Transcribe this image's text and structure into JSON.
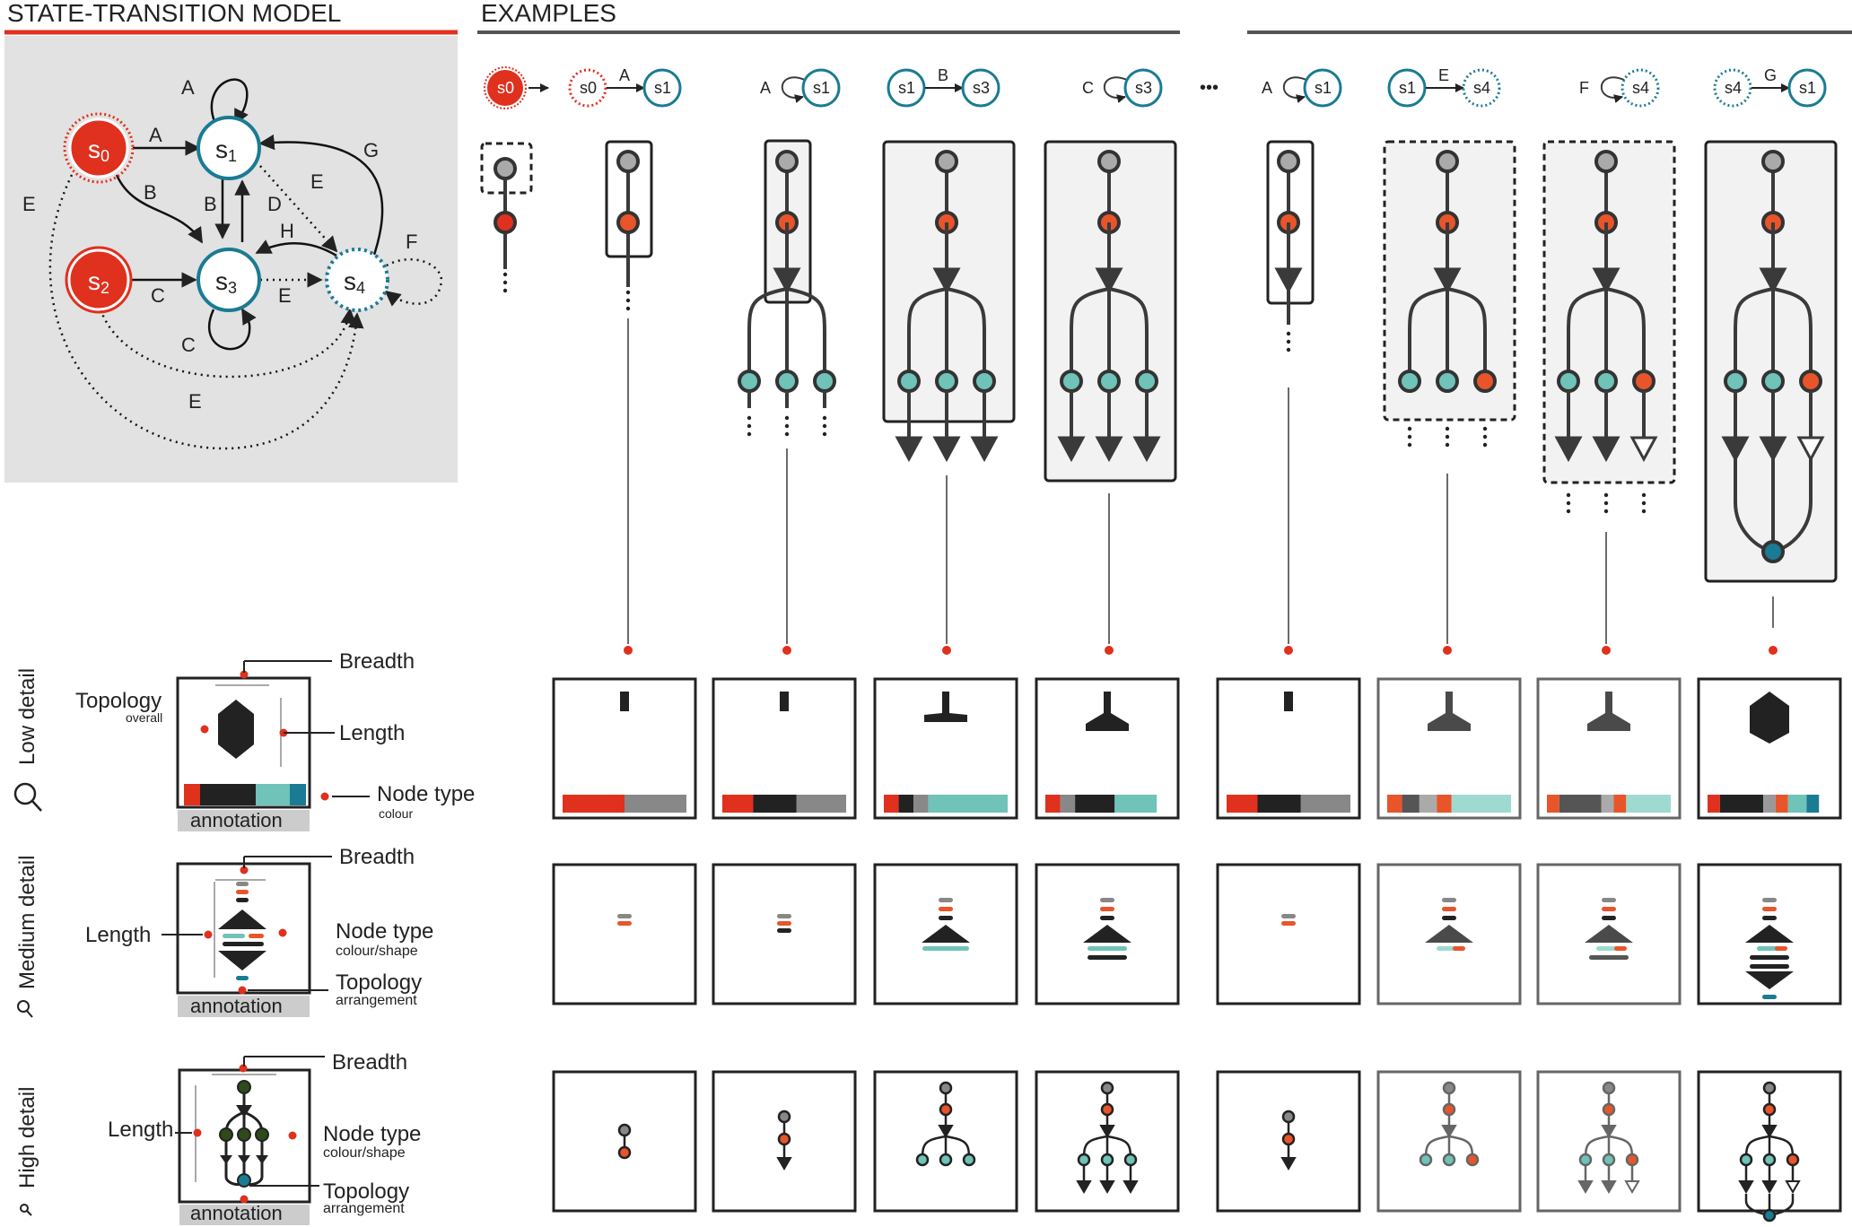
{
  "headers": {
    "model": "STATE-TRANSITION MODEL",
    "examples": "EXAMPLES",
    "ellipsis": "•••"
  },
  "colors": {
    "red": "#e0301e",
    "teal": "#1a7b93",
    "tealLight": "#6fc3b8",
    "orange": "#e8552a",
    "dark": "#222222",
    "grey": "#9a9a9a",
    "panelBg": "#e1e2e1"
  },
  "model": {
    "states": [
      "s0",
      "s1",
      "s2",
      "s3",
      "s4"
    ],
    "transitions": [
      "A",
      "A",
      "B",
      "B",
      "C",
      "C",
      "D",
      "E",
      "E",
      "E",
      "E",
      "F",
      "G",
      "H"
    ]
  },
  "examples": [
    {
      "from": "s0",
      "label": "",
      "to": ""
    },
    {
      "from": "s0",
      "label": "A",
      "to": "s1"
    },
    {
      "from": "",
      "label": "A",
      "to": "s1"
    },
    {
      "from": "s1",
      "label": "B",
      "to": "s3"
    },
    {
      "from": "",
      "label": "C",
      "to": "s3"
    },
    {
      "from": "",
      "label": "A",
      "to": "s1"
    },
    {
      "from": "s1",
      "label": "E",
      "to": "s4"
    },
    {
      "from": "",
      "label": "F",
      "to": "s4"
    },
    {
      "from": "s4",
      "label": "G",
      "to": "s1"
    }
  ],
  "legend": {
    "low": {
      "side": "Low detail",
      "breadth": "Breadth",
      "topology": "Topology",
      "topologySub": "overall",
      "length": "Length",
      "nodeType": "Node type",
      "nodeTypeSub": "colour",
      "annotation": "annotation"
    },
    "medium": {
      "side": "Medium detail",
      "breadth": "Breadth",
      "length": "Length",
      "nodeType": "Node type",
      "nodeTypeSub": "colour/shape",
      "topology": "Topology",
      "topologySub": "arrangement",
      "annotation": "annotation"
    },
    "high": {
      "side": "High detail",
      "breadth": "Breadth",
      "length": "Length",
      "nodeType": "Node type",
      "nodeTypeSub": "colour/shape",
      "topology": "Topology",
      "topologySub": "arrangement",
      "annotation": "annotation"
    }
  }
}
